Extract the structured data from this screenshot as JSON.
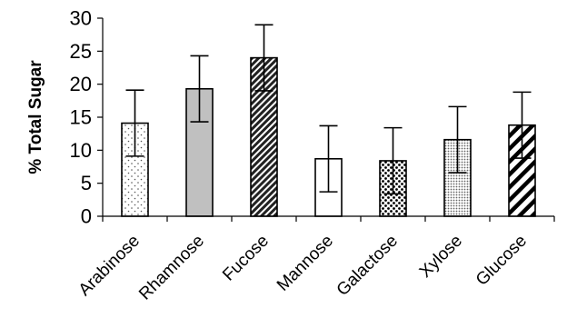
{
  "chart_data": {
    "type": "bar",
    "title": "",
    "xlabel": "",
    "ylabel": "% Total Sugar",
    "ylim": [
      0,
      30
    ],
    "yticks": [
      0,
      5,
      10,
      15,
      20,
      25,
      30
    ],
    "grid": false,
    "legend": "none",
    "categories": [
      "Arabinose",
      "Rhamnose",
      "Fucose",
      "Mannose",
      "Galactose",
      "Xylose",
      "Glucose"
    ],
    "values": [
      14.1,
      19.3,
      24.0,
      8.7,
      8.4,
      11.6,
      13.8
    ],
    "error": [
      5.0,
      5.0,
      5.0,
      5.0,
      5.0,
      5.0,
      5.0
    ],
    "patterns": [
      "sparse-dots",
      "solid-gray",
      "dense-diagonal",
      "solid-white",
      "dense-dots",
      "fine-dots",
      "wide-diagonal"
    ],
    "colors": {
      "axis": "#000000",
      "bar_outline": "#000000",
      "gray_fill": "#c0c0c0"
    }
  }
}
